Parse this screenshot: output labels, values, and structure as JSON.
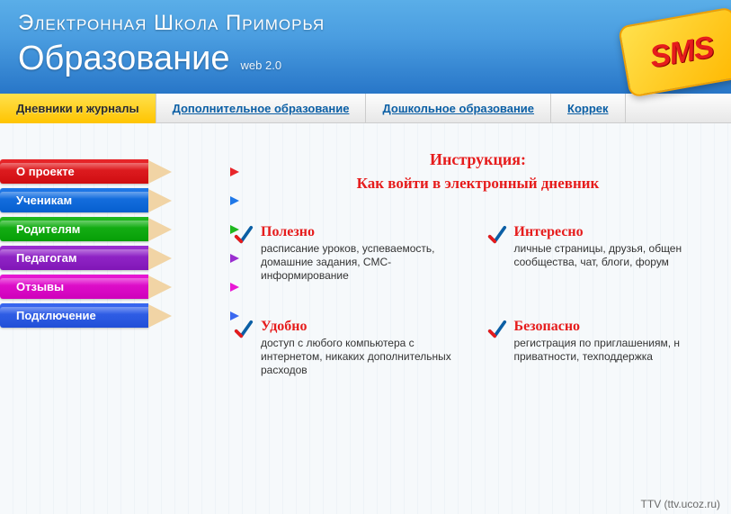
{
  "header": {
    "title": "Электронная Школа Приморья",
    "subtitle": "Образование",
    "tag": "web 2.0",
    "sms_badge": "SMS"
  },
  "topnav": [
    {
      "label": "Дневники и журналы",
      "active": true
    },
    {
      "label": "Дополнительное образование",
      "active": false
    },
    {
      "label": "Дошкольное образование",
      "active": false
    },
    {
      "label": "Коррек",
      "active": false
    }
  ],
  "sidebar": [
    {
      "label": "О проекте",
      "body_color": "#e8262a",
      "wood_color": "#f1d4a5",
      "tip_color": "#e8262a"
    },
    {
      "label": "Ученикам",
      "body_color": "#1f78e8",
      "wood_color": "#f1d4a5",
      "tip_color": "#1f78e8"
    },
    {
      "label": "Родителям",
      "body_color": "#1fb81f",
      "wood_color": "#f1d4a5",
      "tip_color": "#1fb81f"
    },
    {
      "label": "Педагогам",
      "body_color": "#9a2fd0",
      "wood_color": "#f1d4a5",
      "tip_color": "#9a2fd0"
    },
    {
      "label": "Отзывы",
      "body_color": "#e818d4",
      "wood_color": "#f1d4a5",
      "tip_color": "#e818d4"
    },
    {
      "label": "Подключение",
      "body_color": "#3a68f0",
      "wood_color": "#f1d4a5",
      "tip_color": "#3a68f0"
    }
  ],
  "instruction": {
    "title": "Инструкция:",
    "subtitle": "Как войти в электронный дневник"
  },
  "features": [
    {
      "title": "Полезно",
      "desc": "расписание уроков, успеваемость, домашние задания, СМС-информирование"
    },
    {
      "title": "Интересно",
      "desc": "личные страницы, друзья, общен сообщества, чат, блоги, форум"
    },
    {
      "title": "Удобно",
      "desc": "доступ с любого компьютера с интернетом, никаких дополнительных расходов"
    },
    {
      "title": "Безопасно",
      "desc": "регистрация по приглашениям, н приватности, техподдержка"
    }
  ],
  "check_colors": {
    "stroke": "#0b5fa5",
    "accent": "#e61c1c"
  },
  "footer": "TTV (ttv.ucoz.ru)"
}
